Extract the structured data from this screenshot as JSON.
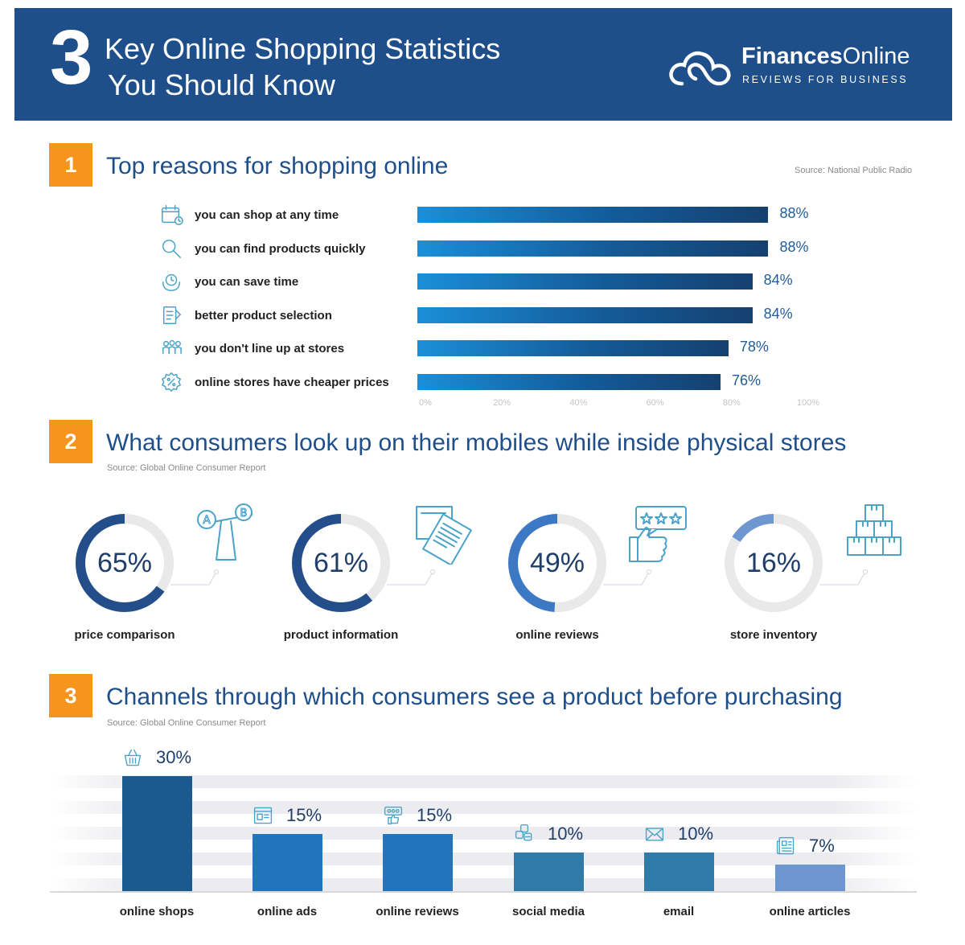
{
  "header": {
    "number": "3",
    "title_line1": "Key Online Shopping Statistics",
    "title_line2": "You Should Know",
    "logo_name_bold": "Finances",
    "logo_name_regular": "Online",
    "logo_tagline": "REVIEWS FOR BUSINESS",
    "background_color": "#1f4f8a"
  },
  "section1": {
    "number": "1",
    "title": "Top reasons for shopping online",
    "source": "Source: National Public Radio",
    "chart_data": {
      "type": "bar",
      "orientation": "horizontal",
      "categories": [
        "you can shop at any time",
        "you can find products quickly",
        "you can save time",
        "better product selection",
        "you don't line up at stores",
        "online stores have cheaper prices"
      ],
      "values": [
        88,
        88,
        84,
        84,
        78,
        76
      ],
      "value_labels": [
        "88%",
        "88%",
        "84%",
        "84%",
        "78%",
        "76%"
      ],
      "icons": [
        "calendar-clock-icon",
        "magnifier-icon",
        "clock-hands-icon",
        "shopping-list-icon",
        "people-group-icon",
        "percent-tag-icon"
      ],
      "xlim": [
        0,
        100
      ],
      "tick_labels": [
        "0%",
        "20%",
        "40%",
        "60%",
        "80%",
        "100%"
      ],
      "grid": false,
      "bar_color": "#1a8fd8"
    }
  },
  "section2": {
    "number": "2",
    "title": "What consumers look up on their mobiles while inside physical stores",
    "source": "Source: Global Online Consumer Report",
    "chart_data": {
      "type": "pie",
      "style": "donut",
      "categories": [
        "price comparison",
        "product information",
        "online reviews",
        "store inventory"
      ],
      "values": [
        65,
        61,
        49,
        16
      ],
      "value_labels": [
        "65%",
        "61%",
        "49%",
        "16%"
      ],
      "icons": [
        "scale-ab-icon",
        "documents-icon",
        "thumbs-up-stars-icon",
        "boxes-stack-icon"
      ],
      "colors": [
        "#244e8a",
        "#244e8a",
        "#3d78c5",
        "#6f97cf"
      ],
      "track_color": "#e9e9e9"
    }
  },
  "section3": {
    "number": "3",
    "title": "Channels through which consumers see a product before purchasing",
    "source": "Source: Global Online Consumer Report",
    "chart_data": {
      "type": "bar",
      "orientation": "vertical",
      "categories": [
        "online shops",
        "online ads",
        "online reviews",
        "social media",
        "email",
        "online articles"
      ],
      "values": [
        30,
        15,
        15,
        10,
        10,
        7
      ],
      "value_labels": [
        "30%",
        "15%",
        "15%",
        "10%",
        "10%",
        "7%"
      ],
      "icons": [
        "shopping-basket-icon",
        "web-browser-icon",
        "review-stars-icon",
        "social-icons-icon",
        "envelope-icon",
        "newspaper-icon"
      ],
      "colors": [
        "#1a5a8f",
        "#2275bd",
        "#2275bd",
        "#2f7aa6",
        "#2f7aa6",
        "#6d95cf"
      ],
      "ylim": [
        0,
        30
      ]
    }
  }
}
